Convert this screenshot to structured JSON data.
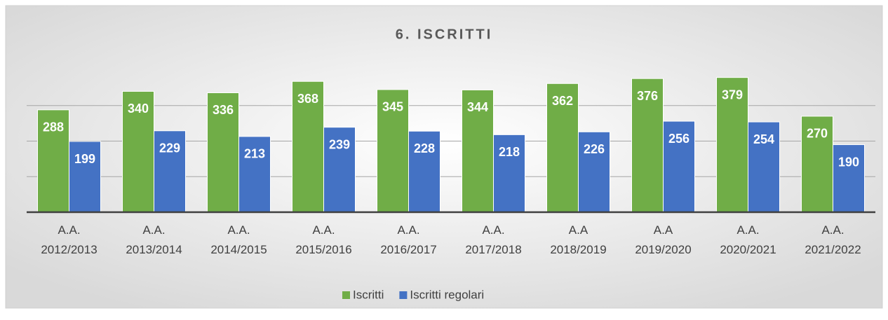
{
  "chart_data": {
    "type": "bar",
    "title": "6. ISCRITTI",
    "categories": [
      "A.A. 2012/2013",
      "A.A. 2013/2014",
      "A.A. 2014/2015",
      "A.A. 2015/2016",
      "A.A. 2016/2017",
      "A.A. 2017/2018",
      "A.A 2018/2019",
      "A.A 2019/2020",
      "A.A. 2020/2021",
      "A.A. 2021/2022"
    ],
    "series": [
      {
        "name": "Iscritti",
        "color": "#70ad47",
        "values": [
          288,
          340,
          336,
          368,
          345,
          344,
          362,
          376,
          379,
          270
        ]
      },
      {
        "name": "Iscritti regolari",
        "color": "#4472c4",
        "values": [
          199,
          229,
          213,
          239,
          228,
          218,
          226,
          256,
          254,
          190
        ]
      }
    ],
    "ylim": [
      0,
      400
    ],
    "yticks": [
      0,
      100,
      200,
      300,
      400
    ],
    "grid": true,
    "legend": "bottom"
  }
}
